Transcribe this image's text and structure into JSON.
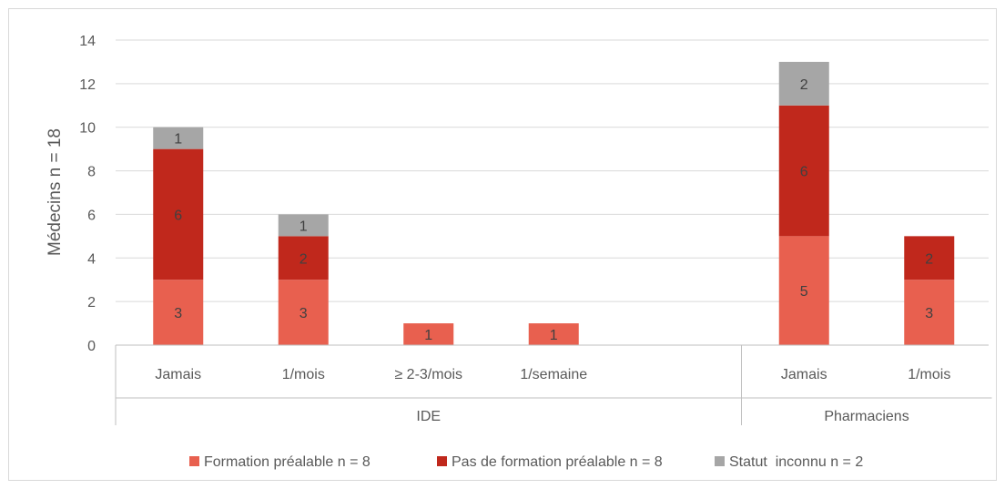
{
  "chart_data": {
    "type": "bar",
    "stacked": true,
    "ylabel": "Médecins n = 18",
    "ylim": [
      0,
      14
    ],
    "yticks": [
      0,
      2,
      4,
      6,
      8,
      10,
      12,
      14
    ],
    "grid": true,
    "legend_position": "bottom",
    "groups": [
      {
        "label": "IDE",
        "categories": [
          "Jamais",
          "1/mois",
          "≥ 2-3/mois",
          "1/semaine"
        ]
      },
      {
        "label": "Pharmaciens",
        "categories": [
          "Jamais",
          "1/mois"
        ]
      }
    ],
    "series": [
      {
        "name": "Formation préalable n = 8",
        "color": "#e8604f",
        "values": [
          3,
          3,
          1,
          1,
          5,
          3
        ]
      },
      {
        "name": "Pas de formation préalable n = 8",
        "color": "#c0281c",
        "values": [
          6,
          2,
          0,
          0,
          6,
          2
        ]
      },
      {
        "name": "Statut  inconnu n = 2",
        "color": "#a6a6a6",
        "values": [
          1,
          1,
          0,
          0,
          2,
          0
        ]
      }
    ]
  }
}
